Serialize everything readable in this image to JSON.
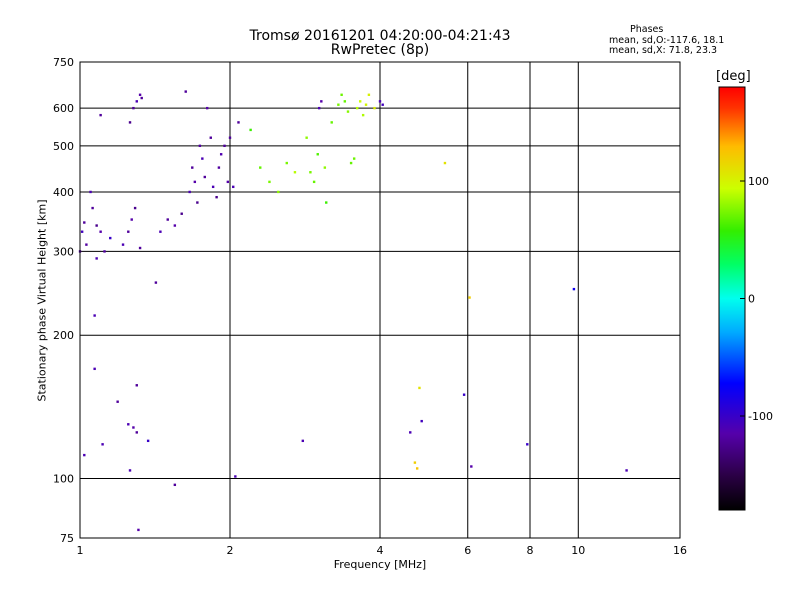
{
  "chart_data": {
    "type": "scatter",
    "title": "Tromsø 20161201 04:20:00-04:21:43",
    "subtitle": "RwPretec (8p)",
    "xlabel": "Frequency [MHz]",
    "ylabel": "Stationary phase Virtual Height [km]",
    "x_scale": "log",
    "y_scale": "log",
    "xlim": [
      1,
      16
    ],
    "ylim": [
      75,
      750
    ],
    "x_ticks": [
      "1",
      "2",
      "4",
      "6",
      "8",
      "10",
      "16"
    ],
    "y_ticks": [
      "75",
      "100",
      "200",
      "300",
      "400",
      "500",
      "600",
      "750"
    ],
    "phases": {
      "title": "Phases",
      "line_o": "mean, sd,O:-117.6, 18.1",
      "line_x": "mean, sd,X:  71.8, 23.3"
    },
    "colorbar": {
      "unit": "[deg]",
      "range": [
        -180,
        180
      ],
      "ticks": [
        "100",
        "0",
        "-100"
      ]
    },
    "points": [
      [
        1.0,
        300,
        -115
      ],
      [
        1.01,
        330,
        -105
      ],
      [
        1.02,
        345,
        -120
      ],
      [
        1.03,
        310,
        -118
      ],
      [
        1.05,
        400,
        -110
      ],
      [
        1.06,
        370,
        -120
      ],
      [
        1.08,
        340,
        -125
      ],
      [
        1.1,
        330,
        -115
      ],
      [
        1.1,
        580,
        -120
      ],
      [
        1.12,
        300,
        -118
      ],
      [
        1.08,
        290,
        -110
      ],
      [
        1.15,
        320,
        -100
      ],
      [
        1.07,
        220,
        -110
      ],
      [
        1.07,
        170,
        -110
      ],
      [
        1.11,
        118,
        -110
      ],
      [
        1.02,
        112,
        -110
      ],
      [
        1.19,
        145,
        -120
      ],
      [
        1.22,
        310,
        -110
      ],
      [
        1.25,
        330,
        -120
      ],
      [
        1.27,
        350,
        -115
      ],
      [
        1.29,
        370,
        -125
      ],
      [
        1.32,
        305,
        -120
      ],
      [
        1.28,
        600,
        -120
      ],
      [
        1.3,
        620,
        -110
      ],
      [
        1.32,
        640,
        -115
      ],
      [
        1.33,
        630,
        -120
      ],
      [
        1.26,
        560,
        -125
      ],
      [
        1.25,
        130,
        -110
      ],
      [
        1.28,
        128,
        -115
      ],
      [
        1.3,
        125,
        -120
      ],
      [
        1.26,
        104,
        -110
      ],
      [
        1.31,
        78,
        -115
      ],
      [
        1.3,
        157,
        -120
      ],
      [
        1.37,
        120,
        -100
      ],
      [
        1.42,
        258,
        -120
      ],
      [
        1.45,
        330,
        -110
      ],
      [
        1.5,
        350,
        -120
      ],
      [
        1.55,
        340,
        -115
      ],
      [
        1.6,
        360,
        -125
      ],
      [
        1.63,
        650,
        -120
      ],
      [
        1.55,
        97,
        -120
      ],
      [
        1.66,
        400,
        -110
      ],
      [
        1.68,
        450,
        -120
      ],
      [
        1.7,
        420,
        -115
      ],
      [
        1.72,
        380,
        -125
      ],
      [
        1.74,
        500,
        -118
      ],
      [
        1.76,
        470,
        -110
      ],
      [
        1.78,
        430,
        -120
      ],
      [
        1.8,
        600,
        -115
      ],
      [
        1.83,
        520,
        -120
      ],
      [
        1.85,
        410,
        -110
      ],
      [
        1.88,
        390,
        -125
      ],
      [
        1.9,
        450,
        -118
      ],
      [
        1.92,
        480,
        -112
      ],
      [
        1.95,
        500,
        -120
      ],
      [
        1.98,
        420,
        -115
      ],
      [
        2.0,
        520,
        -120
      ],
      [
        2.03,
        410,
        -110
      ],
      [
        2.05,
        101,
        -110
      ],
      [
        2.08,
        560,
        -120
      ],
      [
        2.2,
        540,
        60
      ],
      [
        2.3,
        450,
        70
      ],
      [
        2.4,
        420,
        75
      ],
      [
        2.5,
        400,
        80
      ],
      [
        2.6,
        460,
        75
      ],
      [
        2.7,
        440,
        90
      ],
      [
        2.8,
        120,
        -110
      ],
      [
        2.85,
        520,
        80
      ],
      [
        2.9,
        440,
        75
      ],
      [
        2.95,
        420,
        70
      ],
      [
        3.0,
        480,
        65
      ],
      [
        3.02,
        600,
        -110
      ],
      [
        3.05,
        620,
        -115
      ],
      [
        3.1,
        450,
        80
      ],
      [
        3.12,
        380,
        60
      ],
      [
        3.2,
        560,
        70
      ],
      [
        3.3,
        610,
        75
      ],
      [
        3.35,
        640,
        72
      ],
      [
        3.4,
        620,
        70
      ],
      [
        3.45,
        590,
        78
      ],
      [
        3.5,
        460,
        70
      ],
      [
        3.55,
        470,
        72
      ],
      [
        3.6,
        600,
        90
      ],
      [
        3.65,
        620,
        95
      ],
      [
        3.7,
        580,
        88
      ],
      [
        3.75,
        610,
        100
      ],
      [
        3.8,
        640,
        102
      ],
      [
        3.9,
        600,
        105
      ],
      [
        4.0,
        620,
        -110
      ],
      [
        4.05,
        610,
        -105
      ],
      [
        4.6,
        125,
        -110
      ],
      [
        4.7,
        108,
        120
      ],
      [
        4.75,
        105,
        125
      ],
      [
        4.8,
        155,
        110
      ],
      [
        4.85,
        132,
        -105
      ],
      [
        5.4,
        460,
        110
      ],
      [
        5.9,
        150,
        -100
      ],
      [
        6.05,
        240,
        120
      ],
      [
        6.1,
        106,
        -115
      ],
      [
        7.9,
        118,
        -100
      ],
      [
        9.8,
        250,
        -80
      ],
      [
        12.5,
        104,
        -110
      ]
    ]
  }
}
